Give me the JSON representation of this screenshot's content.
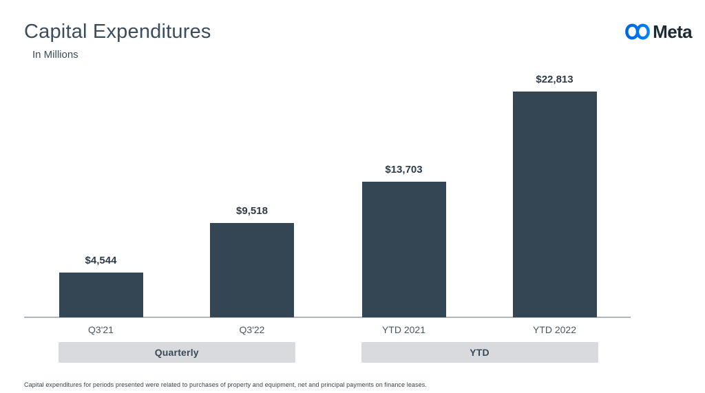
{
  "header": {
    "title": "Capital Expenditures",
    "subtitle": "In Millions"
  },
  "brand": {
    "wordmark": "Meta",
    "logo_icon": "meta-infinity-icon",
    "logo_blue_start": "#0064E0",
    "logo_blue_end": "#0082FB",
    "wordmark_color": "#1C2B33"
  },
  "chart_data": {
    "type": "bar",
    "title": "Capital Expenditures",
    "subtitle_units": "In Millions",
    "categories": [
      "Q3'21",
      "Q3'22",
      "YTD 2021",
      "YTD 2022"
    ],
    "values": [
      4544,
      9518,
      13703,
      22813
    ],
    "value_labels": [
      "$4,544",
      "$9,518",
      "$13,703",
      "$22,813"
    ],
    "groups": [
      {
        "label": "Quarterly",
        "first_index": 0,
        "last_index": 1
      },
      {
        "label": "YTD",
        "first_index": 2,
        "last_index": 3
      }
    ],
    "xlabel": "",
    "ylabel": "",
    "ylim": [
      0,
      23000
    ],
    "grid": false,
    "legend": null,
    "bar_color": "#344553",
    "axis_line_color": "#AEB6BC",
    "group_pill_color": "#D8DADD"
  },
  "footnote": "Capital expenditures for periods presented were related to purchases of property and equipment, net and principal payments on finance leases."
}
